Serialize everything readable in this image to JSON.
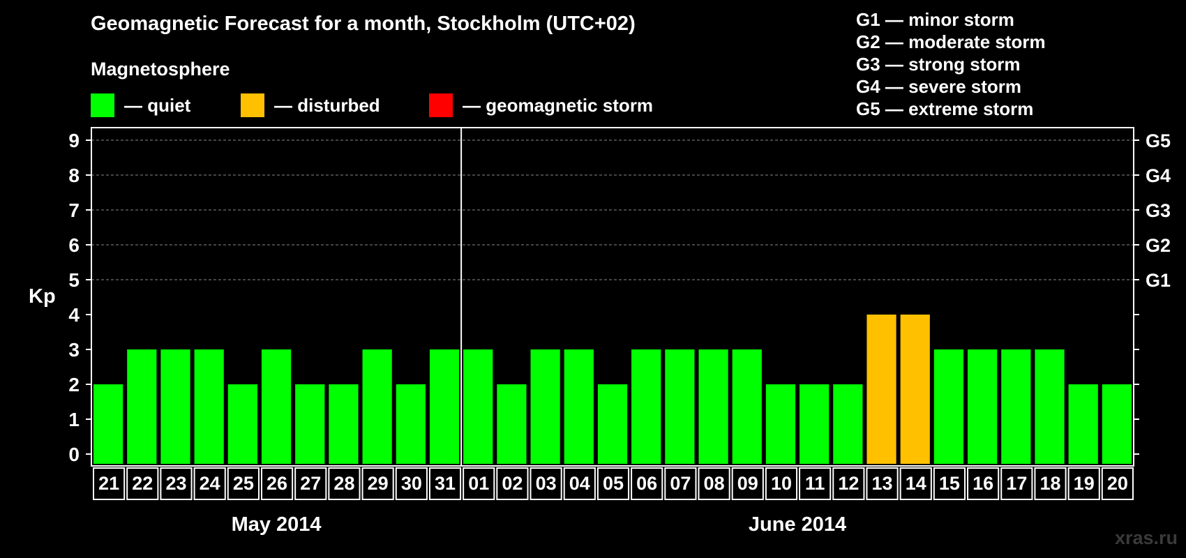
{
  "title": "Geomagnetic Forecast for a month, Stockholm (UTC+02)",
  "magnetosphere_heading": "Magnetosphere",
  "legend": [
    {
      "color": "#00ff00",
      "label": "— quiet"
    },
    {
      "color": "#ffc000",
      "label": "— disturbed"
    },
    {
      "color": "#ff0000",
      "label": "— geomagnetic storm"
    }
  ],
  "storm_scale": [
    "G1 — minor storm",
    "G2 — moderate storm",
    "G3 — strong storm",
    "G4 — severe storm",
    "G5 — extreme storm"
  ],
  "watermark": "xras.ru",
  "chart_data": {
    "type": "bar",
    "ylabel": "Kp",
    "ylim": [
      0,
      9
    ],
    "y_ticks": [
      0,
      1,
      2,
      3,
      4,
      5,
      6,
      7,
      8,
      9
    ],
    "right_axis_labels": [
      {
        "kp": 5,
        "label": "G1"
      },
      {
        "kp": 6,
        "label": "G2"
      },
      {
        "kp": 7,
        "label": "G3"
      },
      {
        "kp": 8,
        "label": "G4"
      },
      {
        "kp": 9,
        "label": "G5"
      }
    ],
    "grid": "dashed horizontal lines at Kp 5-9",
    "months": [
      {
        "label": "May 2014",
        "start_index": 0,
        "end_index": 10
      },
      {
        "label": "June 2014",
        "start_index": 11,
        "end_index": 30
      }
    ],
    "categories": [
      "21",
      "22",
      "23",
      "24",
      "25",
      "26",
      "27",
      "28",
      "29",
      "30",
      "31",
      "01",
      "02",
      "03",
      "04",
      "05",
      "06",
      "07",
      "08",
      "09",
      "10",
      "11",
      "12",
      "13",
      "14",
      "15",
      "16",
      "17",
      "18",
      "19",
      "20"
    ],
    "values": [
      2,
      3,
      3,
      3,
      2,
      3,
      2,
      2,
      3,
      2,
      3,
      3,
      2,
      3,
      3,
      2,
      3,
      3,
      3,
      3,
      2,
      2,
      2,
      4,
      4,
      3,
      3,
      3,
      3,
      2,
      2
    ],
    "status": [
      "quiet",
      "quiet",
      "quiet",
      "quiet",
      "quiet",
      "quiet",
      "quiet",
      "quiet",
      "quiet",
      "quiet",
      "quiet",
      "quiet",
      "quiet",
      "quiet",
      "quiet",
      "quiet",
      "quiet",
      "quiet",
      "quiet",
      "quiet",
      "quiet",
      "quiet",
      "quiet",
      "disturbed",
      "disturbed",
      "quiet",
      "quiet",
      "quiet",
      "quiet",
      "quiet",
      "quiet"
    ],
    "status_colors": {
      "quiet": "#00ff00",
      "disturbed": "#ffc000",
      "storm": "#ff0000"
    }
  }
}
